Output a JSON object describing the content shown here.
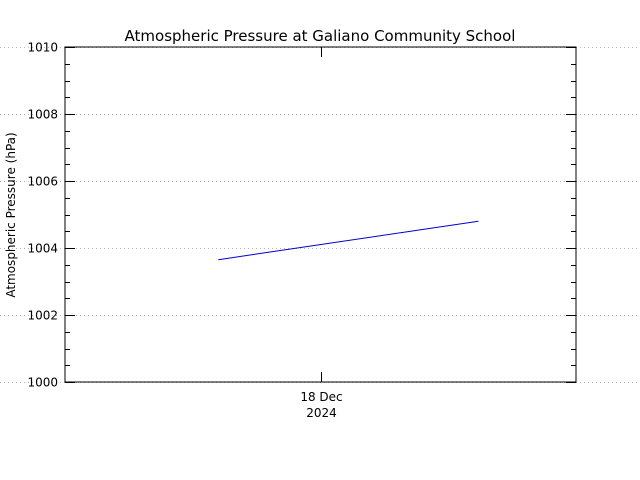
{
  "chart_data": {
    "type": "line",
    "title": "Atmospheric Pressure at Galiano Community School",
    "xlabel": "",
    "ylabel": "Atmospheric Pressure (hPa)",
    "ylim": [
      1000,
      1010
    ],
    "yticks": [
      "1000",
      "1002",
      "1004",
      "1006",
      "1008",
      "1010"
    ],
    "xlim": [
      "2024-12-17T12:00",
      "2024-12-18T12:00"
    ],
    "xticks": [
      {
        "at": "2024-12-18T00:00",
        "line1": "18 Dec",
        "line2": "2024"
      }
    ],
    "grid": true,
    "legend": "none",
    "series": [
      {
        "color": "#0000cc",
        "points": [
          {
            "x": "2024-12-17T19:12",
            "y": 1003.65
          },
          {
            "x": "2024-12-18T07:25",
            "y": 1004.8
          }
        ]
      }
    ]
  }
}
